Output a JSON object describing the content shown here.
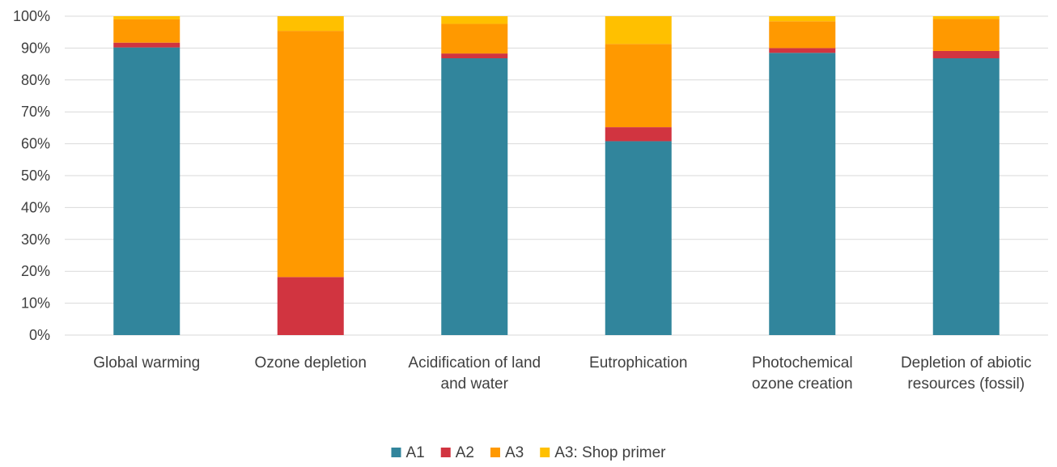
{
  "chart_data": {
    "type": "bar",
    "stacked": true,
    "percent": true,
    "categories": [
      [
        "Global warming"
      ],
      [
        "Ozone depletion"
      ],
      [
        "Acidification of land",
        "and water"
      ],
      [
        "Eutrophication"
      ],
      [
        "Photochemical",
        "ozone creation"
      ],
      [
        "Depletion of abiotic",
        "resources (fossil)"
      ]
    ],
    "series": [
      {
        "name": "A1",
        "color": "#31859c",
        "values": [
          90.2,
          0.0,
          86.8,
          60.8,
          88.5,
          86.8
        ]
      },
      {
        "name": "A2",
        "color": "#d13440",
        "values": [
          1.5,
          18.2,
          1.5,
          4.4,
          1.5,
          2.3
        ]
      },
      {
        "name": "A3",
        "color": "#ff9900",
        "values": [
          7.3,
          77.2,
          9.3,
          26.1,
          8.4,
          10.0
        ]
      },
      {
        "name": "A3: Shop primer",
        "color": "#ffc000",
        "values": [
          1.0,
          4.6,
          2.4,
          8.7,
          1.6,
          0.9
        ]
      }
    ],
    "yticks": [
      "0%",
      "10%",
      "20%",
      "30%",
      "40%",
      "50%",
      "60%",
      "70%",
      "80%",
      "90%",
      "100%"
    ],
    "ylim": [
      0,
      100
    ],
    "grid": true,
    "legend_position": "bottom"
  }
}
